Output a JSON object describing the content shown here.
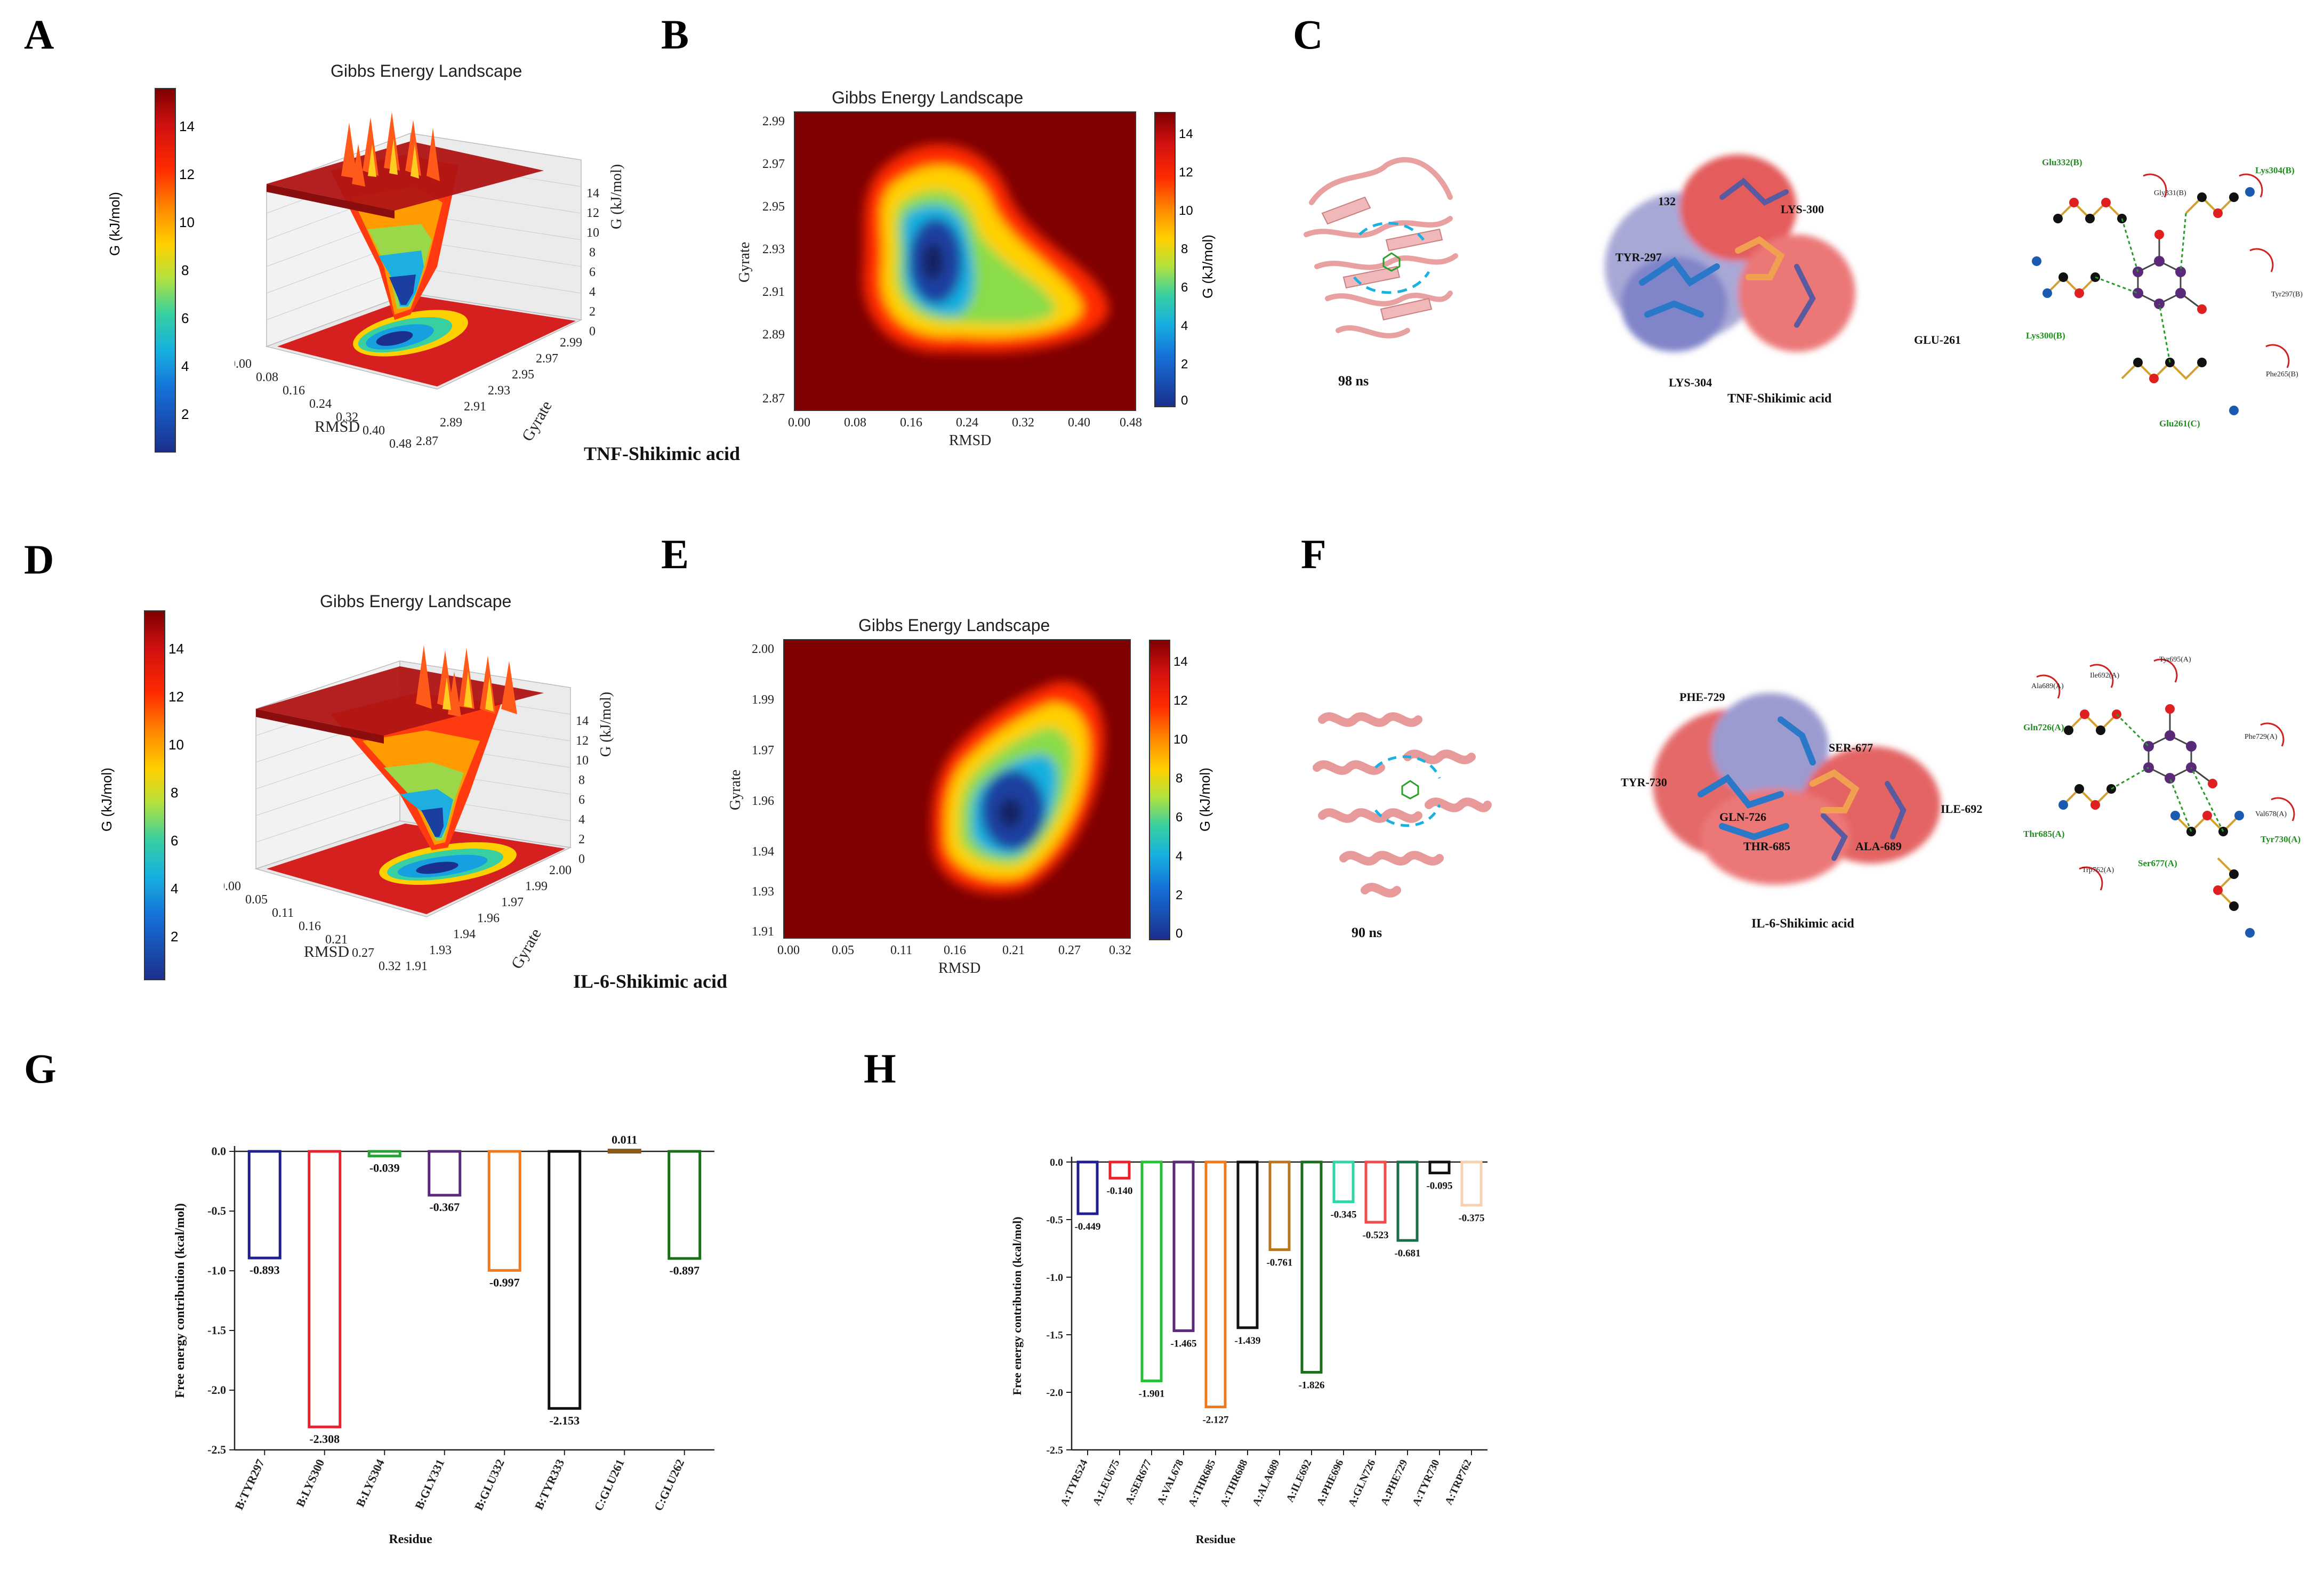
{
  "panels": {
    "A": "A",
    "B": "B",
    "C": "C",
    "D": "D",
    "E": "E",
    "F": "F",
    "G": "G",
    "H": "H"
  },
  "landscape": {
    "title": "Gibbs Energy Landscape",
    "zlabel": "G (kJ/mol)",
    "xlabel": "RMSD",
    "ylabel": "Gyrate",
    "colorbar_ticks": [
      "14",
      "12",
      "10",
      "8",
      "6",
      "4",
      "2",
      "0"
    ],
    "colorbar_ticks_3d": [
      "14",
      "12",
      "10",
      "8",
      "6",
      "4",
      "2"
    ]
  },
  "tnf": {
    "caption": "TNF-Shikimic acid",
    "rmsd_ticks": [
      "0.00",
      "0.08",
      "0.16",
      "0.24",
      "0.32",
      "0.40",
      "0.48"
    ],
    "gyrate_ticks": [
      "2.87",
      "2.89",
      "2.91",
      "2.93",
      "2.95",
      "2.97",
      "2.99"
    ],
    "z_ticks": [
      "14",
      "12",
      "10",
      "8",
      "6",
      "4",
      "2",
      "0"
    ],
    "time": "98 ns",
    "complex_label": "TNF-Shikimic acid",
    "residues_3d": [
      "LYS-300",
      "TYR-297",
      "GLU-261",
      "LYS-304",
      "132"
    ],
    "residues_2d": [
      "Glu332(B)",
      "Lys304(B)",
      "Gly331(B)",
      "Tyr297(B)",
      "Lys300(B)",
      "Phe265(B)",
      "Glu261(C)"
    ]
  },
  "il6": {
    "caption": "IL-6-Shikimic acid",
    "rmsd_ticks": [
      "0.00",
      "0.05",
      "0.11",
      "0.16",
      "0.21",
      "0.27",
      "0.32"
    ],
    "gyrate_ticks": [
      "1.91",
      "1.93",
      "1.94",
      "1.96",
      "1.97",
      "1.99",
      "2.00"
    ],
    "z_ticks": [
      "14",
      "12",
      "10",
      "8",
      "6",
      "4",
      "2",
      "0"
    ],
    "time": "90 ns",
    "complex_label": "IL-6-Shikimic acid",
    "residues_3d": [
      "PHE-729",
      "TYR-730",
      "SER-677",
      "GLN-726",
      "ILE-692",
      "ALA-689",
      "THR-685"
    ],
    "residues_2d": [
      "Ala689(A)",
      "Ile692(A)",
      "Tyr695(A)",
      "Gln726(A)",
      "Phe729(A)",
      "Val678(A)",
      "Thr685(A)",
      "Trp762(A)",
      "Ser677(A)",
      "Tyr730(A)"
    ]
  },
  "chart_data": [
    {
      "type": "bar",
      "panel": "G",
      "xlabel": "Residue",
      "ylabel": "Free energy contribution (kcal/mol)",
      "ylim": [
        -2.5,
        0.0
      ],
      "yticks": [
        "0.0",
        "-0.5",
        "-1.0",
        "-1.5",
        "-2.0",
        "-2.5"
      ],
      "categories": [
        "B:TYR297",
        "B:LYS300",
        "B:LYS304",
        "B:GLY331",
        "B:GLU332",
        "B:TYR333",
        "C:GLU261",
        "C:GLU262"
      ],
      "values": [
        -0.893,
        -2.308,
        -0.039,
        -0.367,
        -0.997,
        -2.153,
        0.011,
        -0.897
      ],
      "labels": [
        "-0.893",
        "-2.308",
        "-0.039",
        "-0.367",
        "-0.997",
        "-2.153",
        "0.011",
        "-0.897"
      ],
      "colors": [
        "#1f1f8f",
        "#e8212a",
        "#27a035",
        "#5a2a78",
        "#f07a1a",
        "#111111",
        "#8a5a1a",
        "#1a6e1a"
      ]
    },
    {
      "type": "bar",
      "panel": "H",
      "xlabel": "Residue",
      "ylabel": "Free energy contribution (kcal/mol)",
      "ylim": [
        -2.5,
        0.0
      ],
      "yticks": [
        "0.0",
        "-0.5",
        "-1.0",
        "-1.5",
        "-2.0",
        "-2.5"
      ],
      "categories": [
        "A:TYR524",
        "A:LEU675",
        "A:SER677",
        "A:VAL678",
        "A:THR685",
        "A:THR688",
        "A:ALA689",
        "A:ILE692",
        "A:PHE696",
        "A:GLN726",
        "A:PHE729",
        "A:TYR730",
        "A:TRP762"
      ],
      "values": [
        -0.449,
        -0.14,
        -1.901,
        -1.465,
        -2.127,
        -1.439,
        -0.761,
        -1.826,
        -0.345,
        -0.523,
        -0.681,
        -0.095,
        -0.375
      ],
      "labels": [
        "-0.449",
        "-0.140",
        "-1.901",
        "-1.465",
        "-2.127",
        "-1.439",
        "-0.761",
        "-1.826",
        "-0.345",
        "-0.523",
        "-0.681",
        "-0.095",
        "-0.375"
      ],
      "colors": [
        "#1f1f8f",
        "#e8212a",
        "#27c035",
        "#5a2a78",
        "#f07a1a",
        "#111111",
        "#b5761e",
        "#1a6e1a",
        "#2ed6a8",
        "#f04a4a",
        "#1a6e4a",
        "#111111",
        "#f5d2b0"
      ]
    }
  ]
}
